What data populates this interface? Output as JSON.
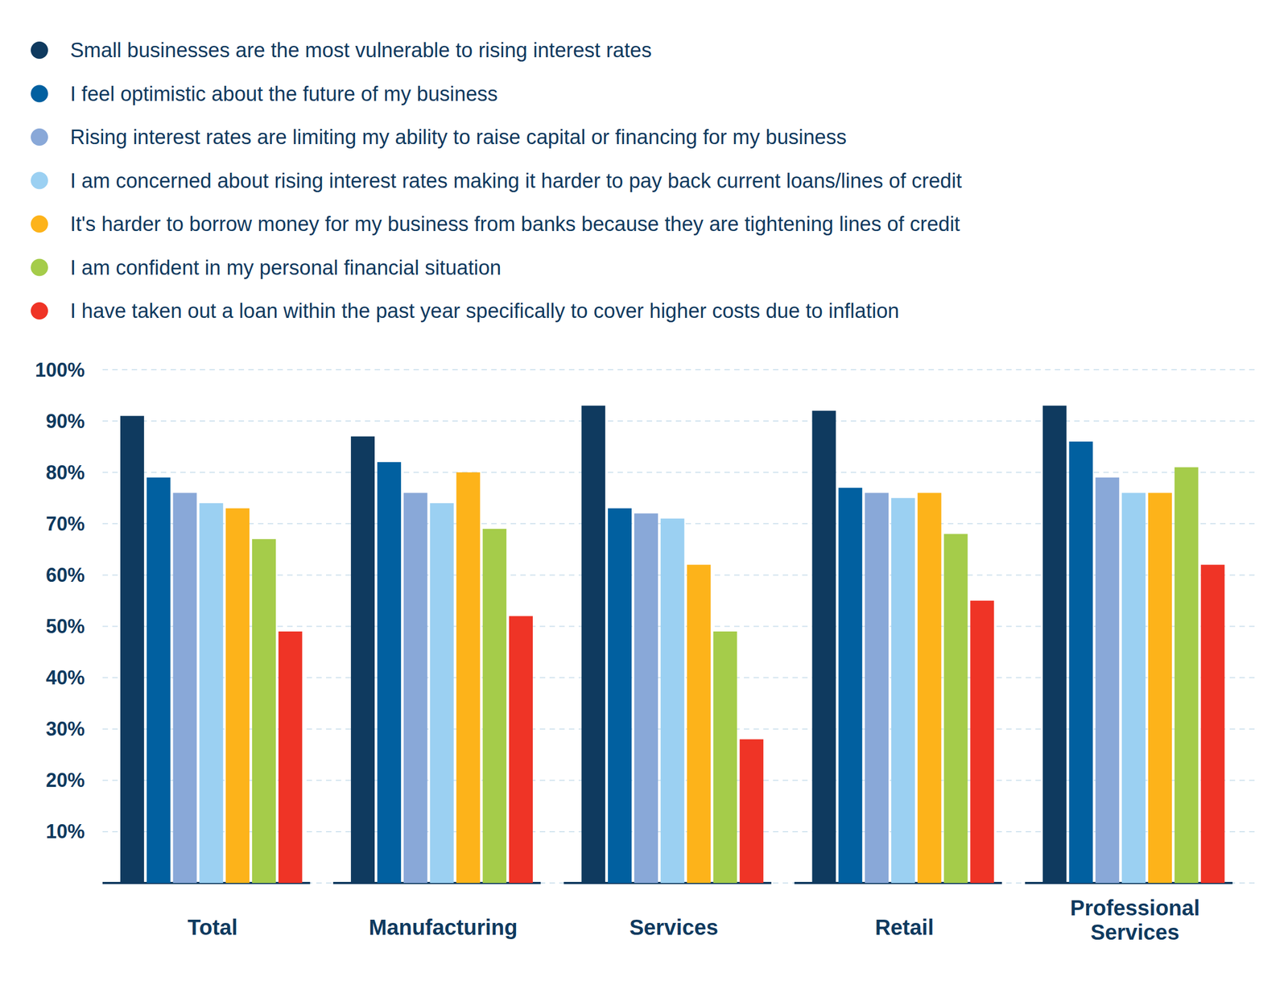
{
  "chart_data": {
    "type": "bar",
    "categories": [
      "Total",
      "Manufacturing",
      "Services",
      "Retail",
      "Professional Services"
    ],
    "series": [
      {
        "name": "Small businesses are the most vulnerable to rising interest rates",
        "color": "#0f3a5f",
        "values": [
          91,
          87,
          93,
          92,
          93
        ]
      },
      {
        "name": "I feel optimistic about the future of my business",
        "color": "#0160a0",
        "values": [
          79,
          82,
          73,
          77,
          86
        ]
      },
      {
        "name": "Rising interest rates are limiting my ability to raise capital or financing for my business",
        "color": "#89a8d8",
        "values": [
          76,
          76,
          72,
          76,
          79
        ]
      },
      {
        "name": "I am concerned about rising interest rates making it harder to pay back current loans/lines of credit",
        "color": "#9bd0f2",
        "values": [
          74,
          74,
          71,
          75,
          76
        ]
      },
      {
        "name": "It's harder to borrow money for my business from banks because they are tightening lines of credit",
        "color": "#fdb31a",
        "values": [
          73,
          80,
          62,
          76,
          76
        ]
      },
      {
        "name": "I am confident in my personal financial situation",
        "color": "#a5cc4a",
        "values": [
          67,
          69,
          49,
          68,
          81
        ]
      },
      {
        "name": "I have taken out a loan within the past year specifically to cover higher costs due to inflation",
        "color": "#ef3426",
        "values": [
          49,
          52,
          28,
          55,
          62
        ]
      }
    ],
    "ylim": [
      0,
      100
    ],
    "yticks": [
      {
        "value": 10,
        "label": "10%"
      },
      {
        "value": 20,
        "label": "20%"
      },
      {
        "value": 30,
        "label": "30%"
      },
      {
        "value": 40,
        "label": "40%"
      },
      {
        "value": 50,
        "label": "50%"
      },
      {
        "value": 60,
        "label": "60%"
      },
      {
        "value": 70,
        "label": "70%"
      },
      {
        "value": 80,
        "label": "80%"
      },
      {
        "value": 90,
        "label": "90%"
      },
      {
        "value": 100,
        "label": "100%"
      }
    ],
    "grid": true,
    "legend": "top-left"
  }
}
